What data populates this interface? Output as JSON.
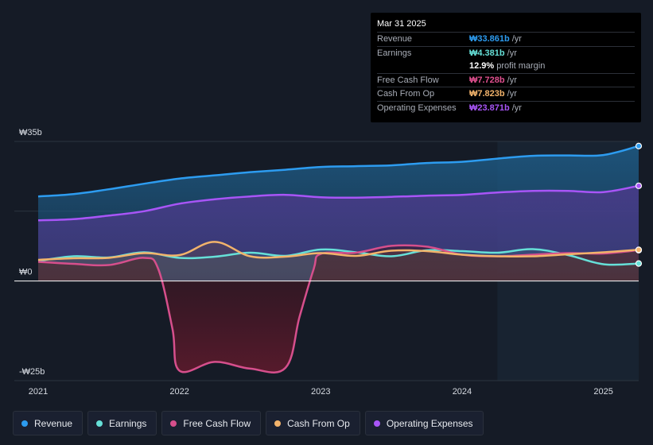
{
  "tooltip": {
    "date": "Mar 31 2025",
    "rows": [
      {
        "label": "Revenue",
        "value": "₩33.861b",
        "unit": "/yr",
        "color": "#2d9cf0"
      },
      {
        "label": "Earnings",
        "value": "₩4.381b",
        "unit": "/yr",
        "color": "#66e0d8"
      },
      {
        "label": "",
        "value": "12.9%",
        "unit": "profit margin",
        "color": "#ffffff"
      },
      {
        "label": "Free Cash Flow",
        "value": "₩7.728b",
        "unit": "/yr",
        "color": "#e0508f"
      },
      {
        "label": "Cash From Op",
        "value": "₩7.823b",
        "unit": "/yr",
        "color": "#f2b36b"
      },
      {
        "label": "Operating Expenses",
        "value": "₩23.871b",
        "unit": "/yr",
        "color": "#a855f7"
      }
    ]
  },
  "legend": [
    {
      "label": "Revenue",
      "color": "#2d9cf0"
    },
    {
      "label": "Earnings",
      "color": "#66e0d8"
    },
    {
      "label": "Free Cash Flow",
      "color": "#d64f8c"
    },
    {
      "label": "Cash From Op",
      "color": "#f2b36b"
    },
    {
      "label": "Operating Expenses",
      "color": "#a855f7"
    }
  ],
  "chart_data": {
    "type": "area",
    "y_tick_labels": [
      "₩35b",
      "₩0",
      "-₩25b"
    ],
    "y_ticks": [
      35,
      0,
      -25
    ],
    "ylim": [
      -25,
      35
    ],
    "x_tick_labels": [
      "2021",
      "2022",
      "2023",
      "2024",
      "2025"
    ],
    "x_ticks": [
      2021.0,
      2022.0,
      2023.0,
      2024.0,
      2025.0
    ],
    "xlim": [
      2021.0,
      2025.25
    ],
    "forecast_start": 2024.25,
    "series": [
      {
        "name": "Revenue",
        "color": "#2d9cf0",
        "x": [
          2021.0,
          2021.25,
          2021.5,
          2021.75,
          2022.0,
          2022.25,
          2022.5,
          2022.75,
          2023.0,
          2023.25,
          2023.5,
          2023.75,
          2024.0,
          2024.25,
          2024.5,
          2024.75,
          2025.0,
          2025.25
        ],
        "values": [
          21.2,
          21.8,
          23.0,
          24.4,
          25.7,
          26.5,
          27.3,
          27.9,
          28.6,
          28.8,
          29.0,
          29.6,
          29.9,
          30.7,
          31.4,
          31.5,
          31.6,
          33.861
        ]
      },
      {
        "name": "Operating Expenses",
        "color": "#a855f7",
        "x": [
          2021.0,
          2021.25,
          2021.5,
          2021.75,
          2022.0,
          2022.25,
          2022.5,
          2022.75,
          2023.0,
          2023.25,
          2023.5,
          2023.75,
          2024.0,
          2024.25,
          2024.5,
          2024.75,
          2025.0,
          2025.25
        ],
        "values": [
          15.2,
          15.5,
          16.4,
          17.5,
          19.4,
          20.5,
          21.2,
          21.6,
          21.0,
          20.9,
          21.1,
          21.4,
          21.6,
          22.2,
          22.6,
          22.6,
          22.3,
          23.871
        ]
      },
      {
        "name": "Earnings",
        "color": "#66e0d8",
        "x": [
          2021.0,
          2021.25,
          2021.5,
          2021.75,
          2022.0,
          2022.25,
          2022.5,
          2022.75,
          2023.0,
          2023.25,
          2023.5,
          2023.75,
          2024.0,
          2024.25,
          2024.5,
          2024.75,
          2025.0,
          2025.25
        ],
        "values": [
          5.0,
          6.2,
          5.9,
          7.2,
          5.8,
          6.1,
          7.1,
          6.3,
          7.9,
          7.2,
          6.2,
          7.7,
          7.5,
          7.1,
          8.0,
          6.5,
          4.2,
          4.381
        ]
      },
      {
        "name": "Free Cash Flow",
        "color": "#d64f8c",
        "x": [
          2021.0,
          2021.25,
          2021.5,
          2021.75,
          2021.85,
          2021.95,
          2022.0,
          2022.25,
          2022.5,
          2022.75,
          2022.85,
          2022.95,
          2023.0,
          2023.25,
          2023.5,
          2023.75,
          2024.0,
          2024.25,
          2024.5,
          2024.75,
          2025.0,
          2025.25
        ],
        "values": [
          4.8,
          4.3,
          4.0,
          5.8,
          3.0,
          -12,
          -22.5,
          -20.3,
          -22.0,
          -21.8,
          -9.0,
          3.0,
          6.8,
          7.1,
          8.8,
          8.6,
          6.6,
          6.2,
          6.6,
          7.0,
          6.9,
          7.728
        ]
      },
      {
        "name": "Cash From Op",
        "color": "#f2b36b",
        "x": [
          2021.0,
          2021.25,
          2021.5,
          2021.75,
          2022.0,
          2022.25,
          2022.5,
          2022.75,
          2023.0,
          2023.25,
          2023.5,
          2023.75,
          2024.0,
          2024.25,
          2024.5,
          2024.75,
          2025.0,
          2025.25
        ],
        "values": [
          5.3,
          5.7,
          5.8,
          7.0,
          6.5,
          9.8,
          6.2,
          6.1,
          7.0,
          6.3,
          7.6,
          7.5,
          6.6,
          6.2,
          6.2,
          6.7,
          7.2,
          7.823
        ]
      }
    ]
  }
}
